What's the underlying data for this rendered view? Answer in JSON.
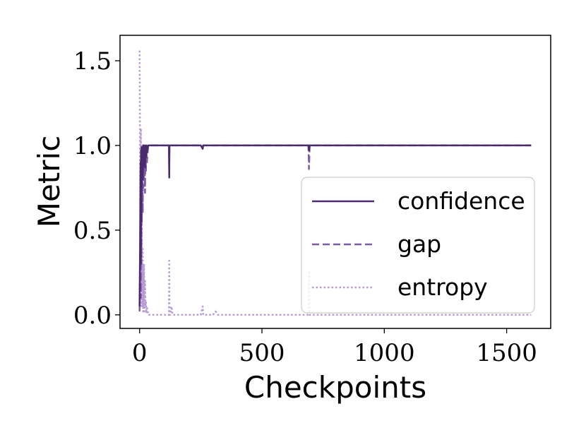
{
  "chart_data": {
    "type": "line",
    "title": "",
    "xlabel": "Checkpoints",
    "ylabel": "Metric",
    "xlim": [
      -80,
      1680
    ],
    "ylim": [
      -0.08,
      1.65
    ],
    "xticks": [
      0,
      500,
      1000,
      1500
    ],
    "xtick_labels": [
      "0",
      "500",
      "1000",
      "1500"
    ],
    "yticks": [
      0.0,
      0.5,
      1.0,
      1.5
    ],
    "ytick_labels": [
      "0.0",
      "0.5",
      "1.0",
      "1.5"
    ],
    "grid": false,
    "legend_position": "center-right",
    "series": [
      {
        "name": "confidence",
        "color": "#4b2a6e",
        "style": "solid",
        "x": [
          0,
          2,
          4,
          5,
          6,
          7,
          8,
          9,
          10,
          11,
          12,
          13,
          14,
          15,
          16,
          18,
          20,
          22,
          24,
          26,
          28,
          30,
          35,
          40,
          60,
          100,
          120,
          121,
          122,
          125,
          150,
          200,
          250,
          258,
          260,
          265,
          300,
          400,
          500,
          600,
          690,
          692,
          695,
          700,
          800,
          1000,
          1200,
          1400,
          1600
        ],
        "y": [
          0.05,
          0.4,
          0.9,
          0.3,
          0.97,
          0.55,
          0.99,
          0.75,
          0.97,
          0.85,
          0.99,
          0.8,
          1.0,
          0.88,
          1.0,
          0.9,
          1.0,
          0.87,
          1.0,
          0.93,
          1.0,
          0.96,
          1.0,
          1.0,
          1.0,
          1.0,
          1.0,
          0.81,
          1.0,
          1.0,
          1.0,
          1.0,
          1.0,
          0.98,
          1.0,
          1.0,
          1.0,
          1.0,
          1.0,
          1.0,
          1.0,
          0.97,
          1.0,
          1.0,
          1.0,
          1.0,
          1.0,
          1.0,
          1.0
        ]
      },
      {
        "name": "gap",
        "color": "#7d5ba6",
        "style": "dashed",
        "x": [
          0,
          2,
          4,
          5,
          6,
          7,
          8,
          9,
          10,
          11,
          12,
          13,
          14,
          15,
          16,
          18,
          20,
          22,
          24,
          26,
          28,
          30,
          35,
          40,
          60,
          100,
          120,
          121,
          122,
          125,
          150,
          200,
          250,
          258,
          260,
          265,
          300,
          400,
          500,
          600,
          690,
          692,
          695,
          700,
          800,
          1000,
          1200,
          1400,
          1600
        ],
        "y": [
          0.02,
          0.3,
          0.85,
          0.1,
          0.95,
          0.3,
          0.98,
          0.55,
          0.95,
          0.7,
          0.98,
          0.6,
          1.0,
          0.75,
          1.0,
          0.8,
          1.0,
          0.72,
          1.0,
          0.85,
          1.0,
          0.9,
          1.0,
          1.0,
          1.0,
          1.0,
          1.0,
          0.87,
          1.0,
          1.0,
          1.0,
          1.0,
          1.0,
          0.99,
          1.0,
          1.0,
          1.0,
          1.0,
          1.0,
          1.0,
          1.0,
          0.86,
          1.0,
          1.0,
          1.0,
          1.0,
          1.0,
          1.0,
          1.0
        ]
      },
      {
        "name": "entropy",
        "color": "#b79ad3",
        "style": "dotted",
        "x": [
          0,
          2,
          3,
          4,
          5,
          6,
          7,
          8,
          9,
          10,
          11,
          12,
          13,
          14,
          15,
          16,
          18,
          20,
          22,
          24,
          26,
          28,
          30,
          35,
          40,
          60,
          100,
          120,
          121,
          122,
          125,
          130,
          135,
          140,
          150,
          200,
          250,
          258,
          260,
          265,
          300,
          310,
          320,
          400,
          500,
          600,
          690,
          692,
          695,
          700,
          800,
          1000,
          1200,
          1400,
          1600
        ],
        "y": [
          1.56,
          0.9,
          0.2,
          0.5,
          1.1,
          0.1,
          0.8,
          0.05,
          0.6,
          0.15,
          0.3,
          0.05,
          0.4,
          0.02,
          0.25,
          0.05,
          0.3,
          0.02,
          0.2,
          0.05,
          0.08,
          0.01,
          0.05,
          0.0,
          0.0,
          0.0,
          0.0,
          0.0,
          0.32,
          0.0,
          0.0,
          0.05,
          0.0,
          0.0,
          0.0,
          0.0,
          0.0,
          0.05,
          0.0,
          0.0,
          0.0,
          0.02,
          0.0,
          0.0,
          0.0,
          0.0,
          0.0,
          0.26,
          0.0,
          0.0,
          0.0,
          0.0,
          0.0,
          0.0,
          0.0
        ]
      }
    ]
  }
}
